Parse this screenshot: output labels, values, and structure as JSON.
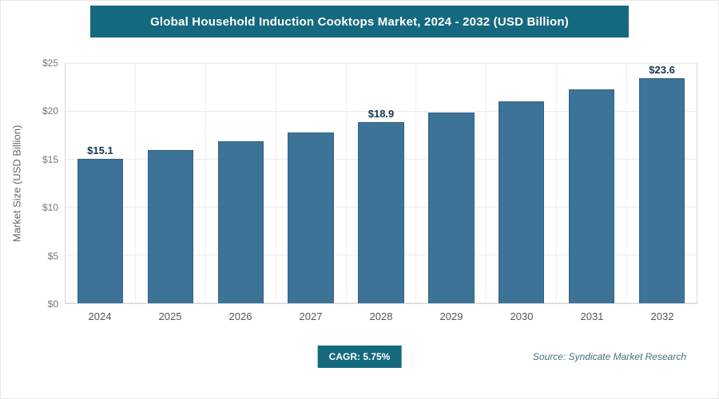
{
  "chart_data": {
    "type": "bar",
    "title": "Global Household Induction Cooktops Market, 2024 - 2032 (USD Billion)",
    "categories": [
      "2024",
      "2025",
      "2026",
      "2027",
      "2028",
      "2029",
      "2030",
      "2031",
      "2032"
    ],
    "values": [
      15.1,
      16.0,
      16.9,
      17.8,
      18.9,
      19.9,
      21.1,
      22.3,
      23.6
    ],
    "data_labels": [
      "$15.1",
      "",
      "",
      "",
      "$18.9",
      "",
      "",
      "",
      "$23.6"
    ],
    "xlabel": "",
    "ylabel": "Market Size (USD Billion)",
    "ylim": [
      0,
      25
    ],
    "y_ticks": [
      {
        "value": 0,
        "label": "$0"
      },
      {
        "value": 5,
        "label": "$5"
      },
      {
        "value": 10,
        "label": "$10"
      },
      {
        "value": 15,
        "label": "$15"
      },
      {
        "value": 20,
        "label": "$20"
      },
      {
        "value": 25,
        "label": "$25"
      }
    ],
    "grid": "horizontal",
    "legend": "none",
    "bar_color": "#3c7396"
  },
  "footer": {
    "cagr_label": "CAGR: 5.75%",
    "source": "Source: Syndicate Market Research"
  },
  "colors": {
    "header_bg": "#15697e",
    "bar": "#3c7396",
    "value_label_text": "#16344f"
  }
}
